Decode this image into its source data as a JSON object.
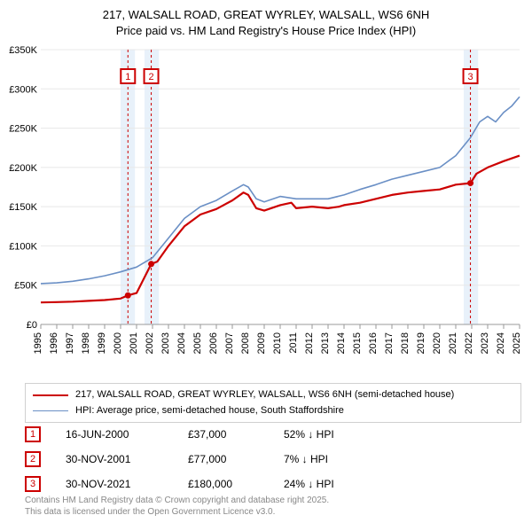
{
  "title": {
    "line1": "217, WALSALL ROAD, GREAT WYRLEY, WALSALL, WS6 6NH",
    "line2": "Price paid vs. HM Land Registry's House Price Index (HPI)",
    "fontsize": 13,
    "color": "#000000"
  },
  "chart": {
    "type": "line",
    "background_color": "#ffffff",
    "grid_color": "#e8e8e8",
    "xlim": [
      1995,
      2025
    ],
    "ylim": [
      0,
      350000
    ],
    "ytick_step": 50000,
    "ytick_labels": [
      "£0",
      "£50K",
      "£100K",
      "£150K",
      "£200K",
      "£250K",
      "£300K",
      "£350K"
    ],
    "xtick_step": 1,
    "xtick_labels": [
      "1995",
      "1996",
      "1997",
      "1998",
      "1999",
      "2000",
      "2001",
      "2002",
      "2003",
      "2004",
      "2005",
      "2006",
      "2007",
      "2008",
      "2009",
      "2010",
      "2011",
      "2012",
      "2013",
      "2014",
      "2015",
      "2016",
      "2017",
      "2018",
      "2019",
      "2020",
      "2021",
      "2022",
      "2023",
      "2024",
      "2025"
    ],
    "tick_fontsize": 11,
    "tick_color": "#000000",
    "highlight_bands": [
      {
        "xstart": 2000.0,
        "xend": 2000.9,
        "fill": "#d6e6f5",
        "opacity": 0.55
      },
      {
        "xstart": 2001.5,
        "xend": 2002.4,
        "fill": "#d6e6f5",
        "opacity": 0.55
      },
      {
        "xstart": 2021.5,
        "xend": 2022.4,
        "fill": "#d6e6f5",
        "opacity": 0.55
      }
    ],
    "vlines": [
      {
        "x": 2000.46,
        "color": "#cc0000",
        "dash": "3,3",
        "width": 1
      },
      {
        "x": 2001.92,
        "color": "#cc0000",
        "dash": "3,3",
        "width": 1
      },
      {
        "x": 2021.92,
        "color": "#cc0000",
        "dash": "3,3",
        "width": 1
      }
    ],
    "markers": [
      {
        "x": 2000.46,
        "y": 37000,
        "label": "1",
        "label_y_offset": -30
      },
      {
        "x": 2001.92,
        "y": 77000,
        "label": "2",
        "label_y_offset": -30
      },
      {
        "x": 2021.92,
        "y": 180000,
        "label": "3",
        "label_y_offset": -35
      }
    ],
    "marker_style": {
      "dot_fill": "#cc0000",
      "dot_radius": 3.5,
      "box_stroke": "#cc0000",
      "box_stroke_width": 2,
      "box_text_color": "#cc0000",
      "box_size": 16,
      "box_fontsize": 11
    },
    "series": [
      {
        "name": "price_paid",
        "label": "217, WALSALL ROAD, GREAT WYRLEY, WALSALL, WS6 6NH (semi-detached house)",
        "color": "#cc0000",
        "line_width": 2.2,
        "data": [
          [
            1995,
            28000
          ],
          [
            1996,
            28500
          ],
          [
            1997,
            29000
          ],
          [
            1998,
            30000
          ],
          [
            1999,
            31000
          ],
          [
            2000,
            33000
          ],
          [
            2000.46,
            37000
          ],
          [
            2001,
            40000
          ],
          [
            2001.92,
            77000
          ],
          [
            2002.3,
            80000
          ],
          [
            2003,
            100000
          ],
          [
            2004,
            125000
          ],
          [
            2005,
            140000
          ],
          [
            2006,
            147000
          ],
          [
            2007,
            158000
          ],
          [
            2007.7,
            168000
          ],
          [
            2008,
            165000
          ],
          [
            2008.5,
            148000
          ],
          [
            2009,
            145000
          ],
          [
            2010,
            152000
          ],
          [
            2010.7,
            155000
          ],
          [
            2011,
            148000
          ],
          [
            2012,
            150000
          ],
          [
            2013,
            148000
          ],
          [
            2013.7,
            150000
          ],
          [
            2014,
            152000
          ],
          [
            2015,
            155000
          ],
          [
            2016,
            160000
          ],
          [
            2017,
            165000
          ],
          [
            2018,
            168000
          ],
          [
            2019,
            170000
          ],
          [
            2020,
            172000
          ],
          [
            2021,
            178000
          ],
          [
            2021.92,
            180000
          ],
          [
            2022.3,
            192000
          ],
          [
            2023,
            200000
          ],
          [
            2024,
            208000
          ],
          [
            2025,
            215000
          ]
        ]
      },
      {
        "name": "hpi",
        "label": "HPI: Average price, semi-detached house, South Staffordshire",
        "color": "#6a8fc5",
        "line_width": 1.6,
        "data": [
          [
            1995,
            52000
          ],
          [
            1996,
            53000
          ],
          [
            1997,
            55000
          ],
          [
            1998,
            58000
          ],
          [
            1999,
            62000
          ],
          [
            2000,
            67000
          ],
          [
            2001,
            73000
          ],
          [
            2002,
            85000
          ],
          [
            2003,
            110000
          ],
          [
            2004,
            135000
          ],
          [
            2005,
            150000
          ],
          [
            2006,
            158000
          ],
          [
            2007,
            170000
          ],
          [
            2007.7,
            178000
          ],
          [
            2008,
            175000
          ],
          [
            2008.5,
            160000
          ],
          [
            2009,
            156000
          ],
          [
            2010,
            163000
          ],
          [
            2011,
            160000
          ],
          [
            2012,
            160000
          ],
          [
            2013,
            160000
          ],
          [
            2014,
            165000
          ],
          [
            2015,
            172000
          ],
          [
            2016,
            178000
          ],
          [
            2017,
            185000
          ],
          [
            2018,
            190000
          ],
          [
            2019,
            195000
          ],
          [
            2020,
            200000
          ],
          [
            2021,
            215000
          ],
          [
            2021.92,
            238000
          ],
          [
            2022.5,
            258000
          ],
          [
            2023,
            265000
          ],
          [
            2023.5,
            258000
          ],
          [
            2024,
            270000
          ],
          [
            2024.5,
            278000
          ],
          [
            2025,
            290000
          ]
        ]
      }
    ]
  },
  "legend": {
    "border_color": "#d0d0d0",
    "fontsize": 11
  },
  "transactions": [
    {
      "marker": "1",
      "date": "16-JUN-2000",
      "price": "£37,000",
      "delta": "52% ↓ HPI"
    },
    {
      "marker": "2",
      "date": "30-NOV-2001",
      "price": "£77,000",
      "delta": "7% ↓ HPI"
    },
    {
      "marker": "3",
      "date": "30-NOV-2021",
      "price": "£180,000",
      "delta": "24% ↓ HPI"
    }
  ],
  "footer": {
    "line1": "Contains HM Land Registry data © Crown copyright and database right 2025.",
    "line2": "This data is licensed under the Open Government Licence v3.0.",
    "color": "#888888",
    "fontsize": 10
  }
}
